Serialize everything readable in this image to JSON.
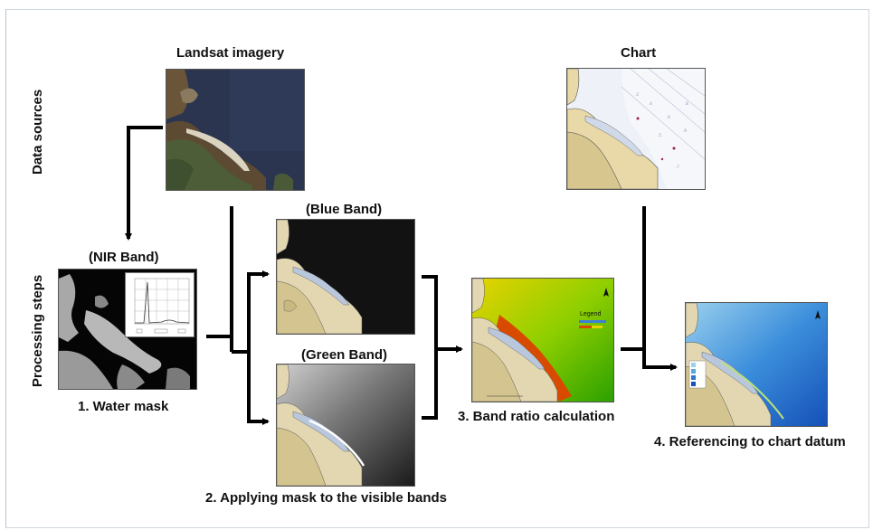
{
  "side_labels": {
    "data_sources": "Data sources",
    "processing_steps": "Processing steps"
  },
  "panels": {
    "landsat": {
      "title": "Landsat imagery"
    },
    "chart": {
      "title": "Chart"
    },
    "nir": {
      "title": "(NIR Band)",
      "caption": "1. Water mask"
    },
    "blue": {
      "title": "(Blue Band)"
    },
    "green": {
      "title": "(Green Band)",
      "caption": "2. Applying mask to the visible bands"
    },
    "ratio": {
      "caption": "3. Band ratio calculation",
      "legend_title": "Legend"
    },
    "datum": {
      "caption": "4. Referencing to chart datum"
    }
  }
}
